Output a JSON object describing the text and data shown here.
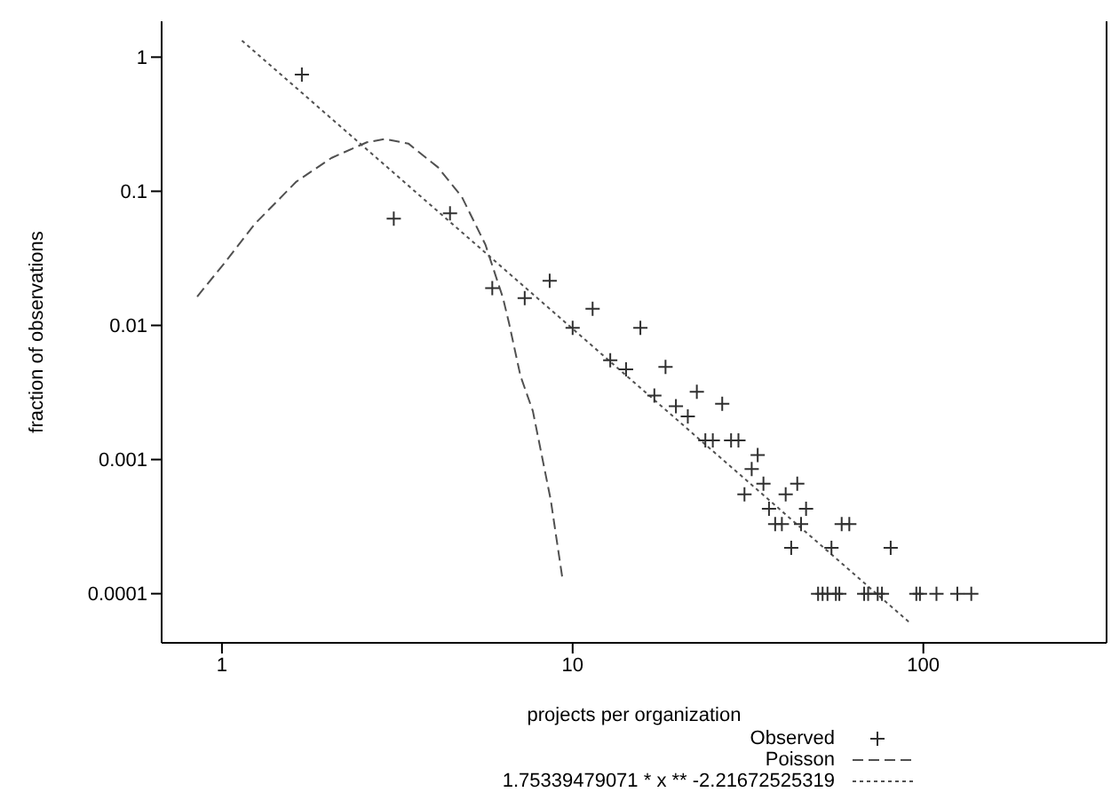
{
  "chart_data": {
    "type": "scatter",
    "xlabel": "projects per organization",
    "ylabel": "fraction of observations",
    "log": "xy",
    "xlim": [
      0.673,
      333
    ],
    "ylim": [
      4.3e-05,
      1.85
    ],
    "xticks": [
      1,
      10,
      100
    ],
    "yticks": [
      0.0001,
      0.001,
      0.01,
      0.1,
      1
    ],
    "grid": false,
    "legend": "bottom right",
    "series": [
      {
        "name": "Observed",
        "marker": "cross",
        "color": "#303030",
        "x": [
          1.69,
          3.09,
          4.47,
          5.9,
          7.3,
          8.6,
          10,
          11.4,
          15.6,
          12.8,
          14.2,
          18.4,
          17.1,
          19.7,
          21.3,
          22.6,
          26.7,
          23.9,
          25.1,
          28.3,
          29.7,
          33.7,
          32.4,
          35,
          43.7,
          40.5,
          30.9,
          36.3,
          46.3,
          37.8,
          39.5,
          44.8,
          58.5,
          61.5,
          42,
          54.7,
          80.7,
          50.1,
          51.6,
          53.3,
          56.3,
          57.6,
          67.8,
          69.6,
          74.1,
          76.2,
          95.5,
          97.8,
          109,
          125,
          137
        ],
        "values": [
          0.74,
          0.0625,
          0.0685,
          0.019,
          0.016,
          0.0215,
          0.0096,
          0.0133,
          0.0096,
          0.0055,
          0.0047,
          0.0049,
          0.003,
          0.0025,
          0.0021,
          0.0032,
          0.0026,
          0.00139,
          0.00139,
          0.00139,
          0.00139,
          0.00108,
          0.00085,
          0.00066,
          0.00066,
          0.00055,
          0.00055,
          0.00043,
          0.00043,
          0.00033,
          0.00033,
          0.00033,
          0.00033,
          0.00033,
          0.00022,
          0.00022,
          0.00022,
          0.0001,
          0.0001,
          0.0001,
          0.0001,
          0.0001,
          0.0001,
          0.0001,
          0.0001,
          0.0001,
          0.0001,
          0.0001,
          0.0001,
          0.0001,
          0.0001
        ]
      },
      {
        "name": "Poisson",
        "type": "line",
        "line_style": "dashed",
        "color": "#505050",
        "x": [
          0.85,
          1.02,
          1.24,
          1.63,
          2.05,
          2.59,
          2.91,
          3.4,
          4.13,
          4.83,
          5.64,
          6.33,
          6.58,
          7.1,
          7.7,
          8.66,
          9.35
        ],
        "values": [
          0.0164,
          0.0295,
          0.057,
          0.118,
          0.177,
          0.232,
          0.245,
          0.227,
          0.151,
          0.091,
          0.04,
          0.016,
          0.0105,
          0.0042,
          0.0023,
          0.0005,
          0.00013
        ]
      },
      {
        "name": "1.75339479071 * x ** -2.21672525319",
        "type": "line",
        "line_style": "dotted",
        "color": "#505050",
        "x": [
          1.14,
          92
        ],
        "values": [
          1.33,
          6e-05
        ]
      }
    ]
  }
}
